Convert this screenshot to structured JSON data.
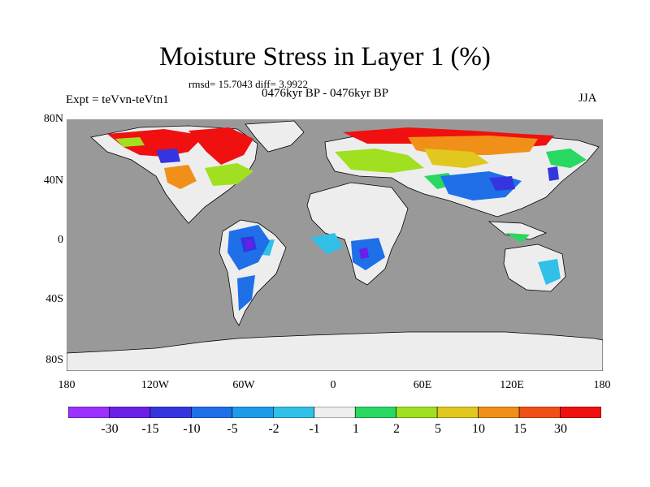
{
  "title": "Moisture Stress in Layer 1 (%)",
  "stats_text": "rmsd= 15.7043 diff= 3.9922",
  "period_text": "0476kyr BP - 0476kyr BP",
  "experiment_text": "Expt = teVvn-teVtn1",
  "season_text": "JJA",
  "y_axis": {
    "ticks": [
      "80N",
      "40N",
      "0",
      "40S",
      "80S"
    ]
  },
  "x_axis": {
    "ticks": [
      "180",
      "120W",
      "60W",
      "0",
      "60E",
      "120E",
      "180"
    ]
  },
  "colorbar": {
    "labels": [
      "-30",
      "-15",
      "-10",
      "-5",
      "-2",
      "-1",
      "1",
      "2",
      "5",
      "10",
      "15",
      "30"
    ],
    "colors": [
      "#9b30ff",
      "#6a20e8",
      "#3535e0",
      "#1e6fe8",
      "#1e9be8",
      "#30c0e8",
      "#eeeeee",
      "#28d860",
      "#a0e020",
      "#e0c81e",
      "#f09018",
      "#f05018",
      "#f01010"
    ]
  },
  "colors": {
    "ocean": "#999999",
    "no_data": "#ededed",
    "coastline": "#000000"
  }
}
